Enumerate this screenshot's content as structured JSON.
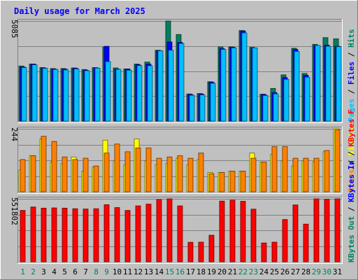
{
  "chart_data": [
    {
      "type": "bar",
      "panel": "hits-files-pages",
      "title": "Daily usage for March 2025",
      "x": [
        1,
        2,
        3,
        4,
        5,
        6,
        7,
        8,
        9,
        10,
        11,
        12,
        13,
        14,
        15,
        16,
        17,
        18,
        19,
        20,
        21,
        22,
        23,
        24,
        25,
        26,
        27,
        28,
        29,
        30,
        31
      ],
      "ymax_label": "5085",
      "ylim": [
        0,
        5085
      ],
      "grid": true,
      "legend_side": "right",
      "legend": [
        {
          "text": "Hits",
          "color": "#00805c"
        },
        {
          "text": "Files",
          "color": "#0000ff"
        },
        {
          "text": "Pages",
          "color": "#00c0ff"
        }
      ],
      "series": [
        {
          "name": "Hits",
          "color": "#00805c",
          "values": [
            2800,
            2900,
            2720,
            2670,
            2670,
            2700,
            2620,
            2720,
            3760,
            2700,
            2650,
            2900,
            3000,
            3600,
            5085,
            4400,
            1380,
            1400,
            2000,
            3770,
            3770,
            4600,
            3750,
            1370,
            1660,
            2350,
            3700,
            2420,
            3900,
            4240,
            4180
          ]
        },
        {
          "name": "Files",
          "color": "#0000ff",
          "values": [
            2750,
            2900,
            2700,
            2640,
            2640,
            2690,
            2590,
            2700,
            3800,
            2640,
            2650,
            2860,
            2900,
            3580,
            4020,
            4000,
            1350,
            1380,
            1980,
            3680,
            3750,
            4580,
            3700,
            1350,
            1450,
            2210,
            3640,
            2330,
            3840,
            3860,
            3800
          ]
        },
        {
          "name": "Pages",
          "color": "#00c0ff",
          "values": [
            2720,
            2860,
            2680,
            2620,
            2600,
            2650,
            2560,
            2690,
            3020,
            2630,
            2580,
            2820,
            2810,
            3570,
            3600,
            3940,
            1310,
            1330,
            1920,
            3640,
            3720,
            4480,
            3720,
            1300,
            1380,
            2120,
            3540,
            2230,
            3840,
            3800,
            3780
          ]
        }
      ]
    },
    {
      "type": "bar",
      "panel": "visits-sites",
      "x": [
        1,
        2,
        3,
        4,
        5,
        6,
        7,
        8,
        9,
        10,
        11,
        12,
        13,
        14,
        15,
        16,
        17,
        18,
        19,
        20,
        21,
        22,
        23,
        24,
        25,
        26,
        27,
        28,
        29,
        30,
        31
      ],
      "ymax_label": "244",
      "ylim": [
        0,
        244
      ],
      "grid": true,
      "legend_side": "right",
      "legend": [
        {
          "text": "Visits",
          "color": "#ffff00"
        },
        {
          "text": "Sites",
          "color": "#ff8000"
        }
      ],
      "series": [
        {
          "name": "Visits",
          "color": "#ffff00",
          "values": [
            85,
            140,
            205,
            115,
            110,
            135,
            80,
            95,
            200,
            120,
            105,
            205,
            120,
            105,
            110,
            130,
            105,
            125,
            75,
            75,
            80,
            80,
            150,
            115,
            145,
            120,
            100,
            120,
            115,
            155,
            244
          ]
        },
        {
          "name": "Sites",
          "color": "#ff8000",
          "values": [
            125,
            140,
            215,
            195,
            135,
            125,
            130,
            100,
            150,
            185,
            155,
            170,
            170,
            130,
            135,
            140,
            130,
            150,
            70,
            75,
            80,
            80,
            130,
            115,
            175,
            175,
            130,
            130,
            130,
            160,
            240
          ]
        }
      ]
    },
    {
      "type": "bar",
      "panel": "kbytes",
      "x": [
        1,
        2,
        3,
        4,
        5,
        6,
        7,
        8,
        9,
        10,
        11,
        12,
        13,
        14,
        15,
        16,
        17,
        18,
        19,
        20,
        21,
        22,
        23,
        24,
        25,
        26,
        27,
        28,
        29,
        30,
        31
      ],
      "ymax_label": "551802",
      "ylim": [
        0,
        551802
      ],
      "grid": true,
      "legend_side": "right",
      "legend": [
        {
          "text": "KBytes F",
          "color": "#ff0000"
        },
        {
          "text": "KBytes In",
          "color": "#0000ff"
        },
        {
          "text": "KBytes Out",
          "color": "#00805c"
        }
      ],
      "series": [
        {
          "name": "KBytes F",
          "color": "#ff0000",
          "values": [
            450000,
            480000,
            470000,
            472000,
            470000,
            465000,
            462000,
            465000,
            500000,
            475000,
            450000,
            490000,
            505000,
            545000,
            551802,
            490000,
            171000,
            172000,
            233000,
            532000,
            540000,
            530000,
            461000,
            165000,
            172000,
            370000,
            498000,
            330000,
            551802,
            548000,
            551802
          ]
        }
      ]
    }
  ],
  "x_label_colors": {
    "weekday": "#000000",
    "weekend": "#00805c"
  },
  "weekend_days": [
    1,
    2,
    8,
    9,
    15,
    16,
    22,
    23,
    29,
    30
  ],
  "colors": {
    "background": "#c0c0c0",
    "plot_bg": "#c0c0c0",
    "title": "#0000ff"
  }
}
